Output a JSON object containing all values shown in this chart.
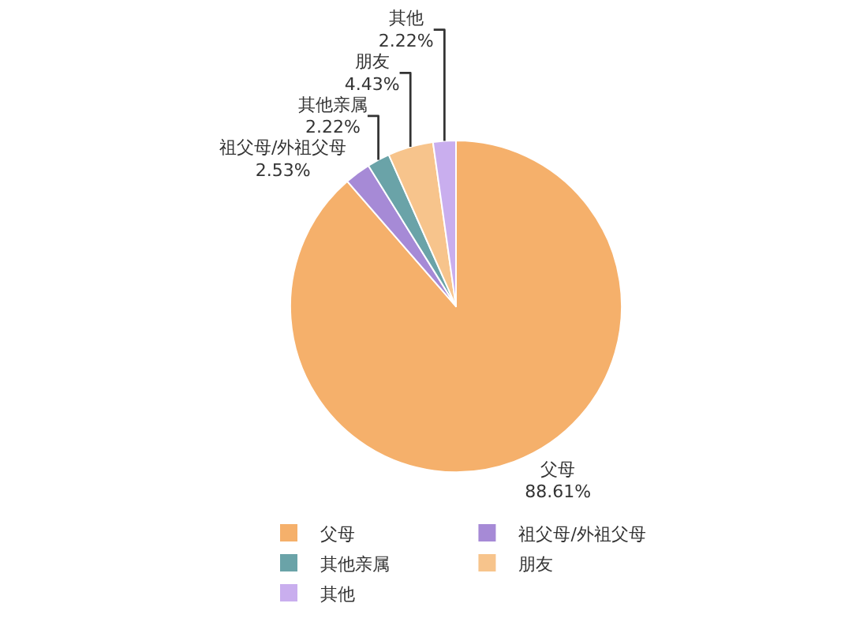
{
  "chart_data": {
    "type": "pie",
    "categories": [
      "父母",
      "祖父母/外祖父母",
      "其他亲属",
      "朋友",
      "其他"
    ],
    "values": [
      88.61,
      2.53,
      2.22,
      4.43,
      2.22
    ],
    "colors": [
      "#f5b06b",
      "#a68ad6",
      "#6aa3a8",
      "#f7c48c",
      "#c9aeee"
    ],
    "value_labels": [
      "88.61%",
      "2.53%",
      "2.22%",
      "4.43%",
      "2.22%"
    ],
    "legend": "bottom"
  }
}
